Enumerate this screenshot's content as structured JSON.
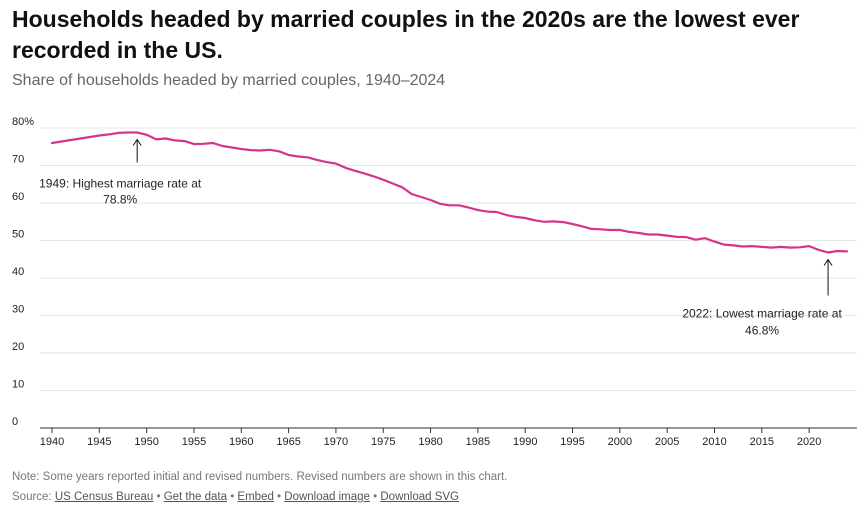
{
  "header": {
    "title": "Households headed by married couples in the 2020s are the lowest ever recorded in the US.",
    "subtitle": "Share of households headed by married couples, 1940–2024"
  },
  "footer": {
    "note": "Note: Some years reported initial and revised numbers. Revised numbers are shown in this chart.",
    "source_prefix": "Source: ",
    "links": [
      "US Census Bureau",
      "Get the data",
      "Embed",
      "Download image",
      "Download SVG"
    ],
    "separator": " • "
  },
  "colors": {
    "line": "#d6338f",
    "grid": "#e6e6e6",
    "axis": "#333333"
  },
  "chart_data": {
    "type": "line",
    "xlim": [
      1940,
      2024
    ],
    "ylim": [
      0,
      80
    ],
    "x_ticks": [
      1940,
      1945,
      1950,
      1955,
      1960,
      1965,
      1970,
      1975,
      1980,
      1985,
      1990,
      1995,
      2000,
      2005,
      2010,
      2015,
      2020
    ],
    "y_ticks": [
      0,
      10,
      20,
      30,
      40,
      50,
      60,
      70,
      80
    ],
    "y_tick_labels": [
      "0",
      "10",
      "20",
      "30",
      "40",
      "50",
      "60",
      "70",
      "80%"
    ],
    "grid": "horizontal",
    "x": [
      1940,
      1941,
      1942,
      1943,
      1944,
      1945,
      1946,
      1947,
      1948,
      1949,
      1950,
      1951,
      1952,
      1953,
      1954,
      1955,
      1956,
      1957,
      1958,
      1959,
      1960,
      1961,
      1962,
      1963,
      1964,
      1965,
      1966,
      1967,
      1968,
      1969,
      1970,
      1971,
      1972,
      1973,
      1974,
      1975,
      1976,
      1977,
      1978,
      1979,
      1980,
      1981,
      1982,
      1983,
      1984,
      1985,
      1986,
      1987,
      1988,
      1989,
      1990,
      1991,
      1992,
      1993,
      1994,
      1995,
      1996,
      1997,
      1998,
      1999,
      2000,
      2001,
      2002,
      2003,
      2004,
      2005,
      2006,
      2007,
      2008,
      2009,
      2010,
      2011,
      2012,
      2013,
      2014,
      2015,
      2016,
      2017,
      2018,
      2019,
      2020,
      2021,
      2022,
      2023,
      2024
    ],
    "y": [
      76.0,
      76.4,
      76.8,
      77.2,
      77.6,
      78.0,
      78.3,
      78.7,
      78.8,
      78.8,
      78.2,
      77.0,
      77.2,
      76.7,
      76.5,
      75.7,
      75.8,
      76.0,
      75.2,
      74.8,
      74.4,
      74.1,
      74.0,
      74.2,
      73.8,
      72.8,
      72.4,
      72.2,
      71.5,
      70.9,
      70.5,
      69.4,
      68.6,
      67.9,
      67.1,
      66.2,
      65.2,
      64.2,
      62.4,
      61.6,
      60.8,
      59.8,
      59.4,
      59.4,
      58.8,
      58.1,
      57.7,
      57.6,
      56.8,
      56.3,
      56.0,
      55.4,
      55.0,
      55.1,
      54.9,
      54.4,
      53.8,
      53.1,
      53.0,
      52.8,
      52.8,
      52.3,
      52.0,
      51.6,
      51.6,
      51.3,
      51.0,
      50.9,
      50.2,
      50.6,
      49.7,
      48.9,
      48.7,
      48.4,
      48.5,
      48.3,
      48.1,
      48.3,
      48.1,
      48.2,
      48.5,
      47.5,
      46.8,
      47.2,
      47.1
    ],
    "annotations": [
      {
        "x": 1949,
        "y": 78.8,
        "lines": [
          "1949: Highest marriage rate at",
          "78.8%"
        ]
      },
      {
        "x": 2022,
        "y": 46.8,
        "lines": [
          "2022: Lowest marriage rate at",
          "46.8%"
        ]
      }
    ]
  }
}
